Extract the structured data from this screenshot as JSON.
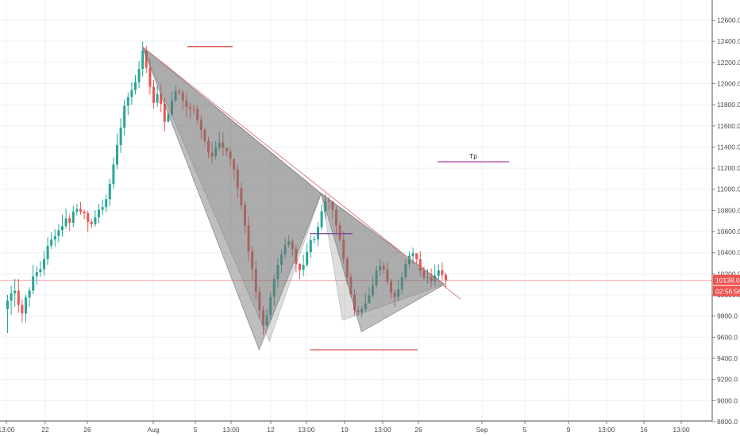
{
  "chart_data": {
    "type": "candlestick",
    "title": "",
    "xlabel": "",
    "ylabel": "",
    "ylim": [
      8800,
      12650
    ],
    "grid": true,
    "y_ticks": [
      "8800.0",
      "9000.0",
      "9200.0",
      "9400.0",
      "9600.0",
      "9800.0",
      "10000.0",
      "10200.0",
      "10400.0",
      "10600.0",
      "10800.0",
      "11000.0",
      "11200.0",
      "11400.0",
      "11600.0",
      "11800.0",
      "12000.0",
      "12200.0",
      "12400.0",
      "12600.0"
    ],
    "x_ticks": [
      "13:00",
      "22",
      "26",
      "Aug",
      "5",
      "13:00",
      "12",
      "13:00",
      "19",
      "13:00",
      "26",
      "Sep",
      "5",
      "9",
      "13:00",
      "16",
      "13:00"
    ],
    "last_price": {
      "value": 10138.0,
      "label": "10138.0"
    },
    "countdown": "02:56:56",
    "reference_lines": [
      {
        "name": "current-price",
        "y": 10138,
        "color": "#f5a3a3"
      }
    ],
    "annotations": [
      {
        "name": "high-line",
        "y": 12350,
        "color": "#e04040"
      },
      {
        "name": "support-line",
        "y": 9480,
        "color": "#e04040"
      },
      {
        "name": "mid-line",
        "y": 10580,
        "color": "#7b3fa0"
      },
      {
        "name": "tp-line",
        "y": 11260,
        "color": "#a020a0",
        "label": "Tp"
      }
    ],
    "trend_line": {
      "from": 12350,
      "to": 9960,
      "color": "#e08080"
    },
    "colors": {
      "up": "#26a69a",
      "down": "#ef5350",
      "grid": "#eef0f3",
      "axis": "#555555",
      "triangle": "rgba(110,110,110,0.45)"
    },
    "candles": [
      [
        9865,
        9945,
        9640,
        10000
      ],
      [
        9945,
        10015,
        9810,
        10090
      ],
      [
        10015,
        10040,
        9890,
        10150
      ],
      [
        10040,
        9905,
        9831,
        10150
      ],
      [
        9905,
        9825,
        9738,
        9959
      ],
      [
        9825,
        9975,
        9741,
        10002
      ],
      [
        9975,
        10042,
        9886,
        10072
      ],
      [
        10042,
        10177,
        10008,
        10284
      ],
      [
        10177,
        10217,
        10098,
        10274
      ],
      [
        10217,
        10243,
        10172,
        10320
      ],
      [
        10243,
        10339,
        10183,
        10413
      ],
      [
        10339,
        10466,
        10283,
        10546
      ],
      [
        10466,
        10524,
        10435,
        10593
      ],
      [
        10524,
        10558,
        10453,
        10621
      ],
      [
        10558,
        10612,
        10499,
        10671
      ],
      [
        10612,
        10651,
        10552,
        10760
      ],
      [
        10651,
        10725,
        10625,
        10817
      ],
      [
        10725,
        10683,
        10605,
        10762
      ],
      [
        10683,
        10789,
        10642,
        10846
      ],
      [
        10789,
        10811,
        10752,
        10862
      ],
      [
        10811,
        10789,
        10761,
        10878
      ],
      [
        10789,
        10773,
        10720,
        10808
      ],
      [
        10773,
        10692,
        10596,
        10797
      ],
      [
        10692,
        10669,
        10633,
        10718
      ],
      [
        10669,
        10734,
        10646,
        10801
      ],
      [
        10734,
        10806,
        10677,
        10860
      ],
      [
        10806,
        10831,
        10756,
        10903
      ],
      [
        10831,
        10906,
        10784,
        10952
      ],
      [
        10906,
        11051,
        10839,
        11098
      ],
      [
        11051,
        11235,
        11004,
        11302
      ],
      [
        11235,
        11418,
        11188,
        11526
      ],
      [
        11418,
        11583,
        11344,
        11671
      ],
      [
        11583,
        11790,
        11512,
        11848
      ],
      [
        11790,
        11872,
        11701,
        11915
      ],
      [
        11872,
        11939,
        11800,
        12014
      ],
      [
        11939,
        12013,
        11897,
        12081
      ],
      [
        12013,
        12138,
        11959,
        12214
      ],
      [
        12138,
        12312,
        12066,
        12396
      ],
      [
        12312,
        12150,
        12100,
        12354
      ],
      [
        12150,
        11970,
        11895,
        12240
      ],
      [
        11970,
        11819,
        11765,
        12033
      ],
      [
        11819,
        11902,
        11781,
        11983
      ],
      [
        11902,
        11807,
        11730,
        11992
      ],
      [
        11807,
        11639,
        11548,
        11863
      ],
      [
        11639,
        11708,
        11632,
        11738
      ],
      [
        11708,
        11839,
        11687,
        11925
      ],
      [
        11839,
        11929,
        11821,
        11984
      ],
      [
        11929,
        11918,
        11890,
        11952
      ],
      [
        11918,
        11840,
        11750,
        11941
      ],
      [
        11840,
        11778,
        11682,
        11909
      ],
      [
        11778,
        11763,
        11667,
        11821
      ],
      [
        11763,
        11759,
        11706,
        11801
      ],
      [
        11759,
        11657,
        11619,
        11795
      ],
      [
        11657,
        11561,
        11474,
        11703
      ],
      [
        11561,
        11456,
        11414,
        11584
      ],
      [
        11456,
        11348,
        11295,
        11495
      ],
      [
        11348,
        11311,
        11244,
        11446
      ],
      [
        11311,
        11393,
        11282,
        11457
      ],
      [
        11393,
        11440,
        11367,
        11539
      ],
      [
        11440,
        11393,
        11314,
        11535
      ],
      [
        11393,
        11357,
        11319,
        11388
      ],
      [
        11357,
        11288,
        11217,
        11396
      ],
      [
        11288,
        11188,
        11091,
        11262
      ],
      [
        11188,
        11009,
        10918,
        11235
      ],
      [
        11009,
        10850,
        10802,
        11060
      ],
      [
        10850,
        10657,
        10581,
        10885
      ],
      [
        10657,
        10412,
        10319,
        10738
      ],
      [
        10412,
        10246,
        10136,
        10462
      ],
      [
        10246,
        10029,
        9956,
        10324
      ],
      [
        10029,
        9856,
        9767,
        10079
      ],
      [
        9856,
        9713,
        9620,
        9895
      ],
      [
        9713,
        9807,
        9693,
        9869
      ],
      [
        9807,
        9981,
        9764,
        10025
      ],
      [
        9981,
        10149,
        9900,
        10197
      ],
      [
        10149,
        10285,
        10069,
        10354
      ],
      [
        10285,
        10381,
        10208,
        10430
      ],
      [
        10381,
        10473,
        10349,
        10539
      ],
      [
        10473,
        10506,
        10447,
        10567
      ],
      [
        10506,
        10435,
        10362,
        10532
      ],
      [
        10435,
        10294,
        10217,
        10476
      ],
      [
        10294,
        10237,
        10151,
        10300
      ],
      [
        10237,
        10284,
        10176,
        10380
      ],
      [
        10284,
        10405,
        10267,
        10489
      ],
      [
        10405,
        10517,
        10349,
        10564
      ],
      [
        10517,
        10526,
        10486,
        10557
      ],
      [
        10526,
        10642,
        10462,
        10687
      ],
      [
        10642,
        10792,
        10614,
        10856
      ],
      [
        10792,
        10891,
        10724,
        10957
      ],
      [
        10891,
        10885,
        10806,
        10930
      ],
      [
        10885,
        10806,
        10722,
        10885
      ],
      [
        10806,
        10658,
        10573,
        10838
      ],
      [
        10658,
        10524,
        10499,
        10697
      ],
      [
        10524,
        10342,
        10297,
        10601
      ],
      [
        10342,
        10171,
        10103,
        10367
      ],
      [
        10171,
        10006,
        9974,
        10206
      ],
      [
        10006,
        9856,
        9808,
        10055
      ],
      [
        9856,
        9835,
        9805,
        9894
      ],
      [
        9835,
        9865,
        9788,
        9897
      ],
      [
        9865,
        9921,
        9840,
        10020
      ],
      [
        9921,
        9997,
        9925,
        10076
      ],
      [
        9997,
        10092,
        9970,
        10179
      ],
      [
        10092,
        10231,
        10060,
        10279
      ],
      [
        10231,
        10275,
        10179,
        10345
      ],
      [
        10275,
        10242,
        10206,
        10309
      ],
      [
        10242,
        10125,
        10098,
        10307
      ],
      [
        10125,
        10021,
        9965,
        10153
      ],
      [
        10021,
        9982,
        9882,
        10053
      ],
      [
        9982,
        10053,
        9941,
        10134
      ],
      [
        10053,
        10170,
        10009,
        10219
      ],
      [
        10170,
        10294,
        10139,
        10339
      ],
      [
        10294,
        10368,
        10256,
        10411
      ],
      [
        10368,
        10395,
        10294,
        10448
      ],
      [
        10395,
        10338,
        10296,
        10394
      ],
      [
        10338,
        10228,
        10176,
        10412
      ],
      [
        10228,
        10162,
        10139,
        10270
      ],
      [
        10162,
        10172,
        10108,
        10243
      ],
      [
        10172,
        10126,
        10071,
        10249
      ],
      [
        10126,
        10182,
        10089,
        10288
      ],
      [
        10182,
        10233,
        10143,
        10289
      ],
      [
        10233,
        10189,
        10145,
        10308
      ],
      [
        10189,
        10138,
        10061,
        10211
      ]
    ]
  }
}
